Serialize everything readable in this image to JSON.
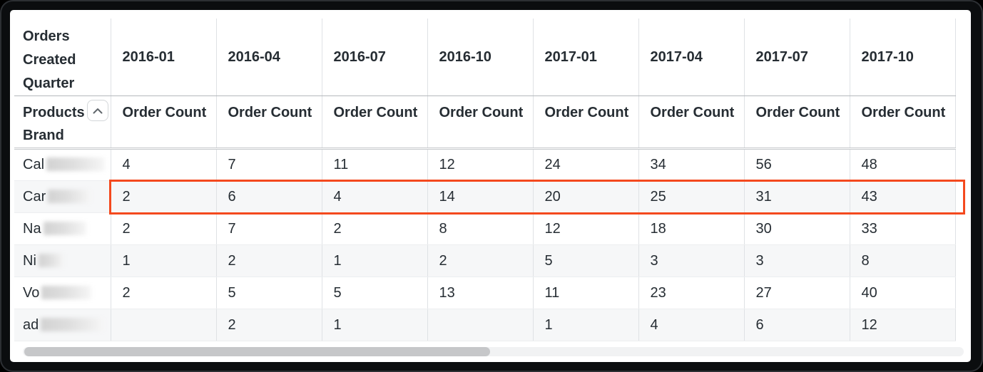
{
  "table": {
    "corner_header": "Orders Created Quarter",
    "row_dimension_header": "Products Brand",
    "measure_header": "Order Count",
    "sort_icon": "chevron-up",
    "quarters": [
      "2016-01",
      "2016-04",
      "2016-07",
      "2016-10",
      "2017-01",
      "2017-04",
      "2017-07",
      "2017-10"
    ],
    "rows": [
      {
        "brand_prefix": "Cal",
        "redacted_width": 82,
        "values": [
          "4",
          "7",
          "11",
          "12",
          "24",
          "34",
          "56",
          "48"
        ]
      },
      {
        "brand_prefix": "Car",
        "redacted_width": 60,
        "values": [
          "2",
          "6",
          "4",
          "14",
          "20",
          "25",
          "31",
          "43"
        ],
        "highlighted": true
      },
      {
        "brand_prefix": "Na",
        "redacted_width": 60,
        "values": [
          "2",
          "7",
          "2",
          "8",
          "12",
          "18",
          "30",
          "33"
        ]
      },
      {
        "brand_prefix": "Ni",
        "redacted_width": 36,
        "values": [
          "1",
          "2",
          "1",
          "2",
          "5",
          "3",
          "3",
          "8"
        ]
      },
      {
        "brand_prefix": "Vo",
        "redacted_width": 70,
        "values": [
          "2",
          "5",
          "5",
          "13",
          "11",
          "23",
          "27",
          "40"
        ]
      },
      {
        "brand_prefix": "ad",
        "redacted_width": 88,
        "values": [
          "",
          "2",
          "1",
          "",
          "1",
          "4",
          "6",
          "12"
        ]
      }
    ],
    "highlight_color": "#F4491E",
    "text_color": "#262d33"
  },
  "scrollbar": {
    "thumb_width_pct": 49.5
  }
}
